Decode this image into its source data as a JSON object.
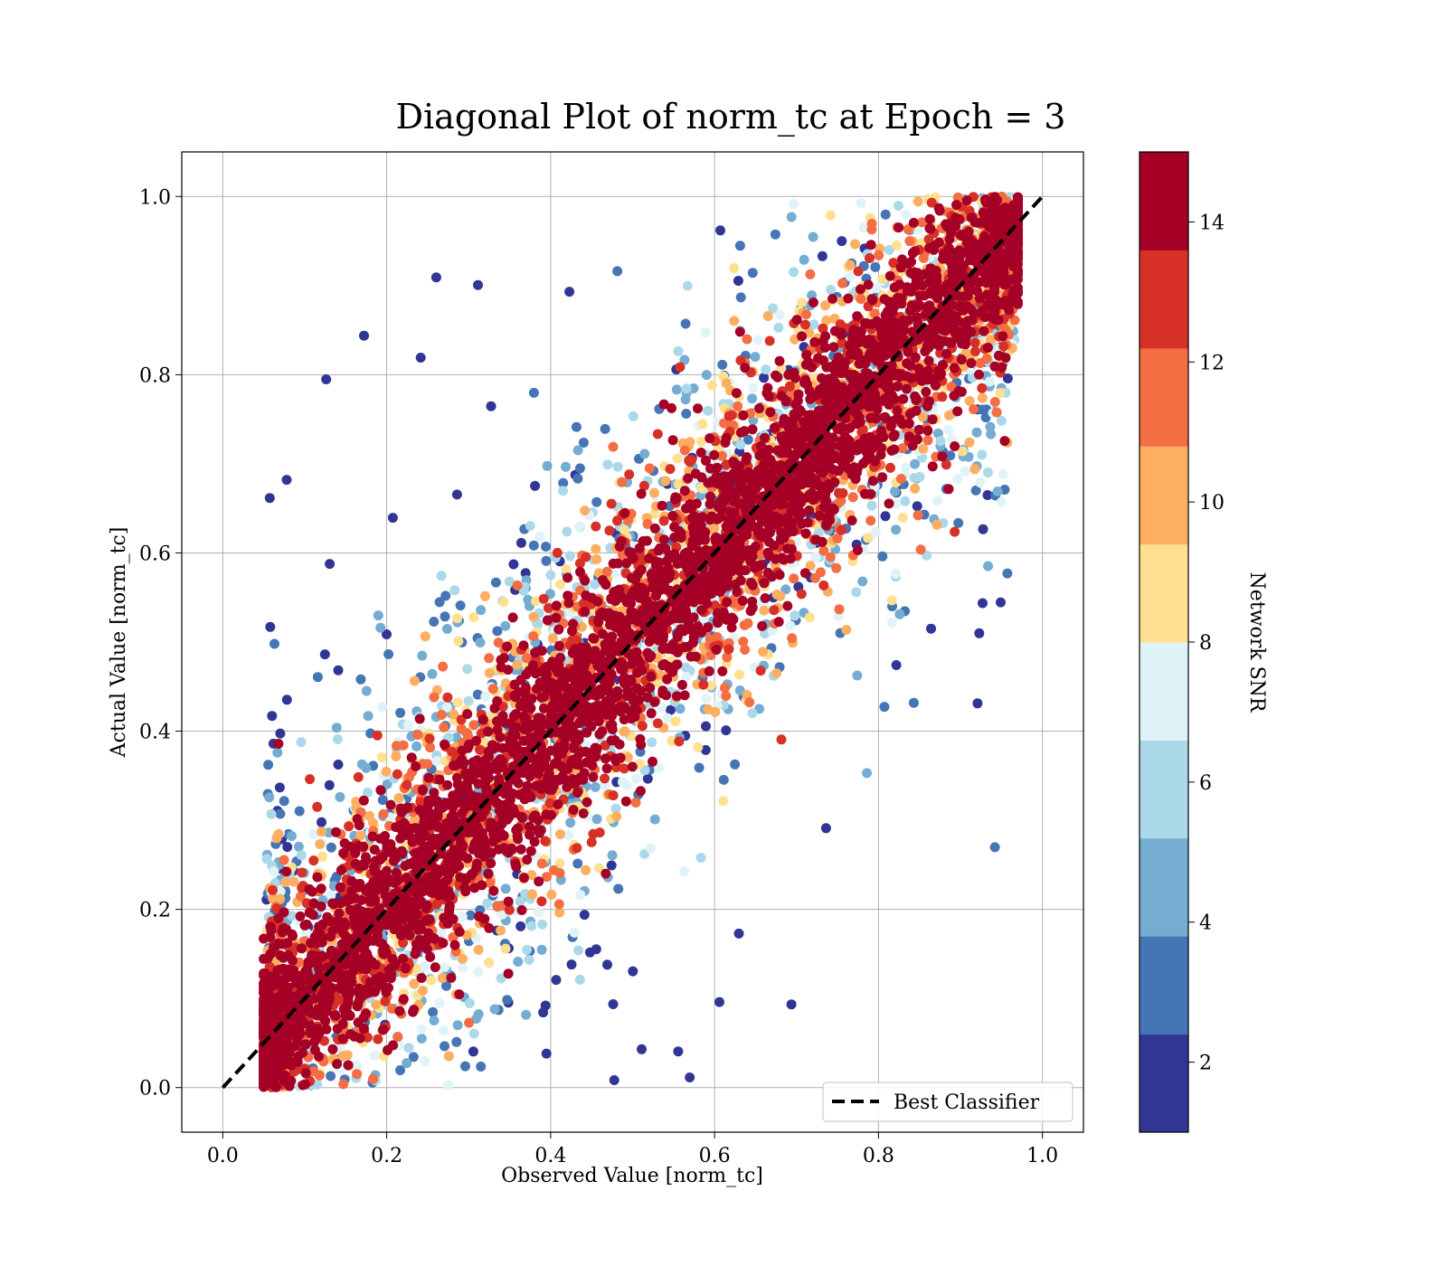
{
  "chart_data": {
    "type": "scatter",
    "title": "Diagonal Plot of norm_tc at Epoch = 3",
    "xlabel": "Observed Value [norm_tc]",
    "ylabel": "Actual Value [norm_tc]",
    "xlim": [
      -0.05,
      1.05
    ],
    "ylim": [
      -0.05,
      1.05
    ],
    "xticks": [
      "0.0",
      "0.2",
      "0.4",
      "0.6",
      "0.8",
      "1.0"
    ],
    "yticks": [
      "0.0",
      "0.2",
      "0.4",
      "0.6",
      "0.8",
      "1.0"
    ],
    "grid": true,
    "reference_line": {
      "name": "Best Classifier",
      "x": [
        0.0,
        1.0
      ],
      "y": [
        0.0,
        1.0
      ],
      "style": "dashed",
      "color": "#000000"
    },
    "legend": {
      "placement": "lower-right",
      "entries": [
        "Best Classifier"
      ]
    },
    "colorbar": {
      "label": "Network SNR",
      "range": [
        1,
        15
      ],
      "ticks": [
        "2",
        "4",
        "6",
        "8",
        "10",
        "12",
        "14"
      ],
      "tick_values": [
        2,
        4,
        6,
        8,
        10,
        12,
        14
      ],
      "colormap": "RdYlBu_r",
      "bins": [
        "#313695",
        "#4575b4",
        "#74add1",
        "#abd9e9",
        "#e0f3f8",
        "#fee090",
        "#fdae61",
        "#f46d43",
        "#d73027",
        "#a50026"
      ]
    },
    "scatter_description": {
      "x_range_of_points": [
        0.04,
        0.97
      ],
      "y_range_of_points": [
        0.0,
        1.0
      ],
      "pattern": "high-SNR points concentrate along the diagonal; low-SNR points spread toward upper-left and lower-right"
    }
  }
}
